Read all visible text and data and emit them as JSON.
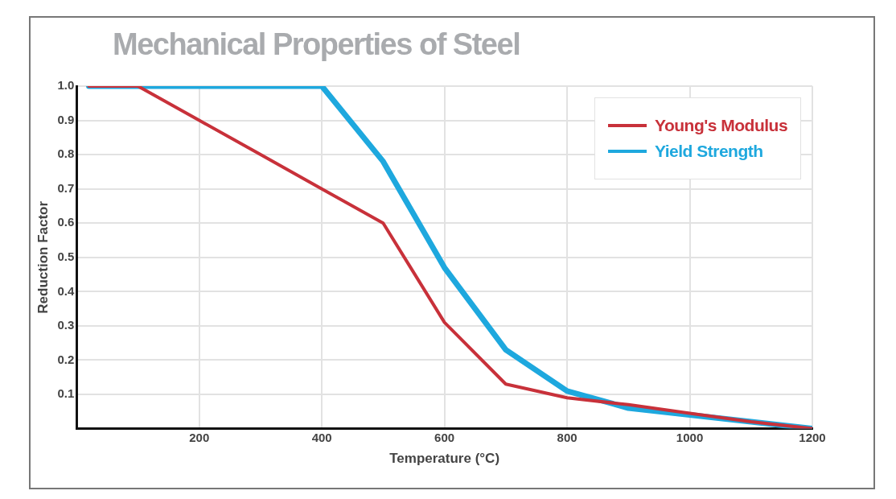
{
  "chart_data": {
    "type": "line",
    "title": "Mechanical Properties of Steel",
    "xlabel": "Temperature (°C)",
    "ylabel": "Reduction Factor",
    "x": [
      20,
      100,
      200,
      300,
      400,
      500,
      600,
      700,
      800,
      900,
      1000,
      1100,
      1200
    ],
    "series": [
      {
        "name": "Young's Modulus",
        "color": "#c8313a",
        "values": [
          1.0,
          1.0,
          0.9,
          0.8,
          0.7,
          0.6,
          0.31,
          0.13,
          0.09,
          0.07,
          0.045,
          0.02,
          0.0
        ]
      },
      {
        "name": "Yield Strength",
        "color": "#1ea8de",
        "values": [
          1.0,
          1.0,
          1.0,
          1.0,
          1.0,
          0.78,
          0.47,
          0.23,
          0.11,
          0.06,
          0.04,
          0.02,
          0.0
        ]
      }
    ],
    "xlim": [
      0,
      1200
    ],
    "xticks": [
      200,
      400,
      600,
      800,
      1000,
      1200
    ],
    "ylim": [
      0,
      1.0
    ],
    "yticks": [
      0.1,
      0.2,
      0.3,
      0.4,
      0.5,
      0.6,
      0.7,
      0.8,
      0.9,
      "1.0"
    ],
    "grid": true,
    "legend": "top right",
    "marker": "none",
    "line_style": "solid"
  }
}
